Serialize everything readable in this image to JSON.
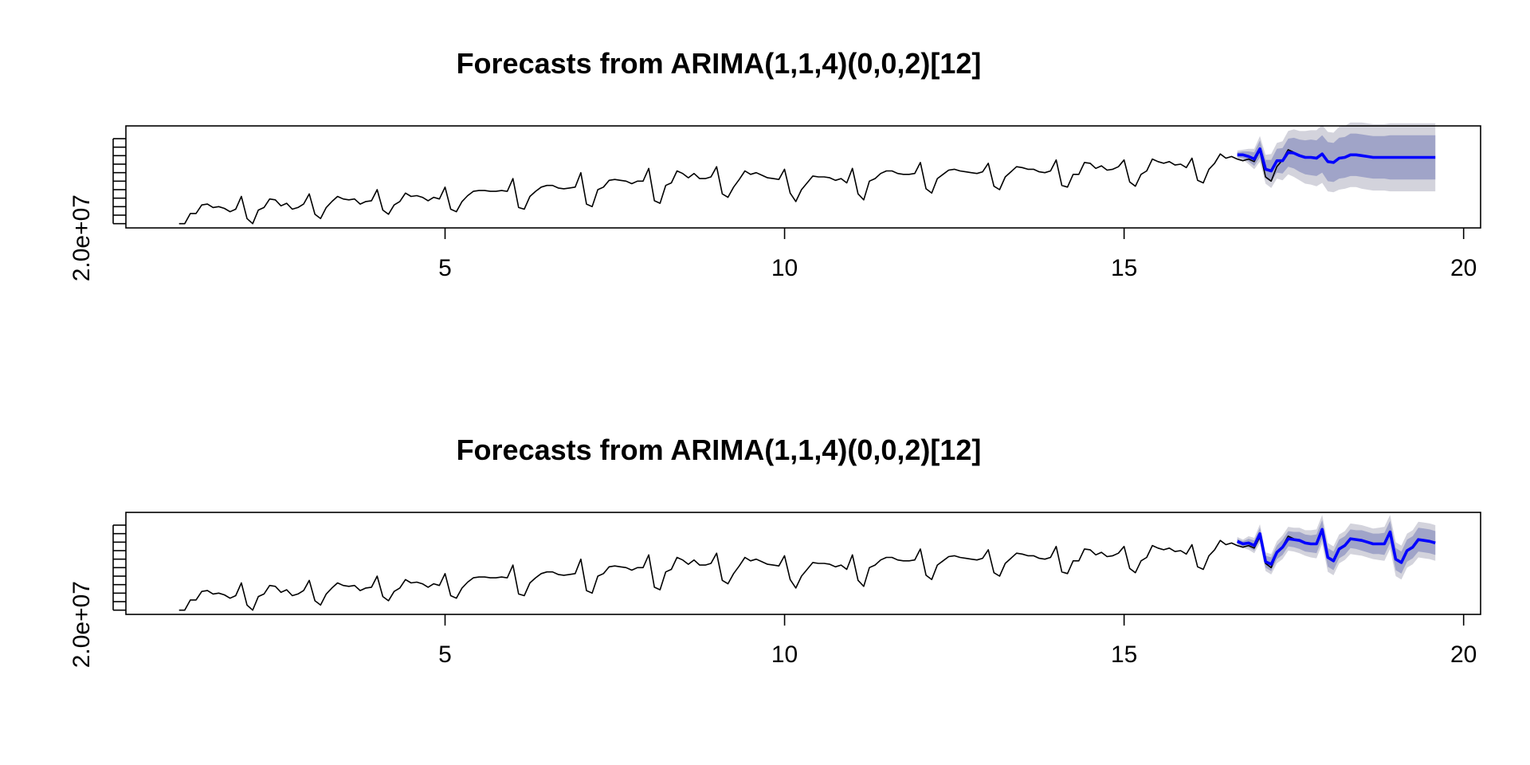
{
  "colors": {
    "history": "#000000",
    "forecast": "#0000ff",
    "band80": "#a0a4c8",
    "band95": "#d3d3dc",
    "axis": "#000000"
  },
  "chart_data": [
    {
      "type": "line",
      "title": "Forecasts from ARIMA(1,1,4)(0,0,2)[12]",
      "xlabel": "",
      "ylabel": "",
      "x_ticks": [
        5,
        10,
        15,
        20
      ],
      "x_tick_labels": [
        "5",
        "10",
        "15",
        "20"
      ],
      "y_tick_labels": [
        "2.0e+07"
      ],
      "xlim": [
        0.3,
        20.25
      ],
      "ylim": [
        19500000,
        31500000
      ],
      "y_minor_ticks": [
        20000000,
        21000000,
        22000000,
        23000000,
        24000000,
        25000000,
        26000000,
        27000000,
        28000000,
        29000000,
        30000000
      ],
      "grid": false,
      "legend": "none",
      "history": {
        "start": 1.0833,
        "step": 0.08333,
        "values": [
          20000000,
          20000000,
          21200000,
          21200000,
          22200000,
          22300000,
          21900000,
          22000000,
          21800000,
          21400000,
          21700000,
          23200000,
          20600000,
          20000000,
          21600000,
          21900000,
          22900000,
          22800000,
          22100000,
          22400000,
          21700000,
          21900000,
          22300000,
          23500000,
          21100000,
          20600000,
          21900000,
          22600000,
          23200000,
          22900000,
          22800000,
          22900000,
          22300000,
          22600000,
          22700000,
          24000000,
          21600000,
          21100000,
          22200000,
          22600000,
          23600000,
          23200000,
          23300000,
          23100000,
          22700000,
          23100000,
          22900000,
          24300000,
          21700000,
          21400000,
          22600000,
          23300000,
          23800000,
          23900000,
          23900000,
          23800000,
          23800000,
          23900000,
          23800000,
          25300000,
          21900000,
          21700000,
          23200000,
          23800000,
          24300000,
          24500000,
          24500000,
          24200000,
          24100000,
          24200000,
          24300000,
          26000000,
          22300000,
          22000000,
          24000000,
          24300000,
          25100000,
          25200000,
          25100000,
          25000000,
          24700000,
          25000000,
          25000000,
          26500000,
          22700000,
          22400000,
          24500000,
          24800000,
          26200000,
          25900000,
          25400000,
          25900000,
          25300000,
          25300000,
          25500000,
          26700000,
          23500000,
          23100000,
          24300000,
          25200000,
          26200000,
          25800000,
          26000000,
          25700000,
          25400000,
          25300000,
          25200000,
          26400000,
          23600000,
          22600000,
          24000000,
          24800000,
          25600000,
          25500000,
          25500000,
          25400000,
          25100000,
          25300000,
          24800000,
          26500000,
          23500000,
          22800000,
          25000000,
          25300000,
          25900000,
          26200000,
          26200000,
          25900000,
          25800000,
          25800000,
          25900000,
          27200000,
          24100000,
          23600000,
          25300000,
          25800000,
          26300000,
          26400000,
          26200000,
          26100000,
          26000000,
          25900000,
          26100000,
          27100000,
          24400000,
          24000000,
          25500000,
          26100000,
          26700000,
          26600000,
          26400000,
          26400000,
          26100000,
          26000000,
          26200000,
          27500000,
          24500000,
          24300000,
          25800000,
          25800000,
          27200000,
          27100000,
          26500000,
          26800000,
          26300000,
          26400000,
          26700000,
          27500000,
          24900000,
          24400000,
          25800000,
          26200000,
          27600000,
          27300000,
          27100000,
          27300000,
          26900000,
          27000000,
          26600000,
          27700000,
          25100000,
          24800000,
          26400000,
          27100000,
          28200000,
          27700000,
          27900000,
          27600000,
          27400000,
          27600000,
          27300000,
          28600000,
          25500000,
          25000000,
          26700000,
          27500000,
          28700000,
          28400000
        ]
      },
      "forecast": {
        "start": 16.667,
        "step": 0.08333,
        "mean": [
          28100000,
          28100000,
          27900000,
          27600000,
          28800000,
          26400000,
          26200000,
          27400000,
          27400000,
          28400000,
          28300000,
          28000000,
          27800000,
          27800000,
          27700000,
          28200000,
          27300000,
          27200000,
          27700000,
          27800000,
          28100000,
          28100000,
          28000000,
          27900000,
          27800000,
          27800000,
          27800000,
          27800000,
          27800000,
          27800000,
          27800000,
          27800000,
          27800000,
          27800000,
          27800000,
          27800000
        ],
        "lo80": [
          27800000,
          27700000,
          27300000,
          26800000,
          27800000,
          25300000,
          24900000,
          26000000,
          25900000,
          26700000,
          26500000,
          26100000,
          25800000,
          25700000,
          25600000,
          26000000,
          25000000,
          24900000,
          25300000,
          25400000,
          25600000,
          25600000,
          25500000,
          25400000,
          25300000,
          25300000,
          25300000,
          25200000,
          25200000,
          25200000,
          25200000,
          25200000,
          25200000,
          25200000,
          25200000,
          25200000
        ],
        "hi80": [
          28400000,
          28500000,
          28500000,
          28400000,
          29800000,
          27500000,
          27500000,
          28800000,
          28900000,
          30000000,
          30100000,
          29900000,
          29800000,
          29900000,
          29800000,
          30400000,
          29600000,
          29500000,
          30100000,
          30200000,
          30600000,
          30600000,
          30500000,
          30400000,
          30300000,
          30300000,
          30300000,
          30400000,
          30400000,
          30400000,
          30400000,
          30400000,
          30400000,
          30400000,
          30400000,
          30400000
        ],
        "lo95": [
          27600000,
          27500000,
          27000000,
          26400000,
          27300000,
          24700000,
          24200000,
          25300000,
          25100000,
          25800000,
          25500000,
          25100000,
          24700000,
          24600000,
          24400000,
          24800000,
          23800000,
          23700000,
          24000000,
          24100000,
          24300000,
          24300000,
          24100000,
          24000000,
          23900000,
          23900000,
          23900000,
          23800000,
          23800000,
          23800000,
          23800000,
          23800000,
          23800000,
          23800000,
          23800000,
          23800000
        ],
        "hi95": [
          28600000,
          28700000,
          28800000,
          28800000,
          30300000,
          28100000,
          28200000,
          29500000,
          29700000,
          30900000,
          31100000,
          30900000,
          30900000,
          31000000,
          31000000,
          31600000,
          30800000,
          30700000,
          31400000,
          31500000,
          31900000,
          31900000,
          31900000,
          31800000,
          31700000,
          31700000,
          31700000,
          31800000,
          31800000,
          31800000,
          31800000,
          31800000,
          31800000,
          31800000,
          31800000,
          31800000
        ]
      }
    },
    {
      "type": "line",
      "title": "Forecasts from ARIMA(1,1,4)(0,0,2)[12]",
      "xlabel": "",
      "ylabel": "",
      "x_ticks": [
        5,
        10,
        15,
        20
      ],
      "x_tick_labels": [
        "5",
        "10",
        "15",
        "20"
      ],
      "y_tick_labels": [
        "2.0e+07"
      ],
      "xlim": [
        0.3,
        20.25
      ],
      "ylim": [
        19500000,
        31500000
      ],
      "y_minor_ticks": [
        20000000,
        21000000,
        22000000,
        23000000,
        24000000,
        25000000,
        26000000,
        27000000,
        28000000,
        29000000,
        30000000
      ],
      "grid": false,
      "legend": "none",
      "history": {
        "start": 1.0833,
        "step": 0.08333,
        "values": [
          20000000,
          20000000,
          21200000,
          21200000,
          22200000,
          22300000,
          21900000,
          22000000,
          21800000,
          21400000,
          21700000,
          23200000,
          20600000,
          20000000,
          21600000,
          21900000,
          22900000,
          22800000,
          22100000,
          22400000,
          21700000,
          21900000,
          22300000,
          23500000,
          21100000,
          20600000,
          21900000,
          22600000,
          23200000,
          22900000,
          22800000,
          22900000,
          22300000,
          22600000,
          22700000,
          24000000,
          21600000,
          21100000,
          22200000,
          22600000,
          23600000,
          23200000,
          23300000,
          23100000,
          22700000,
          23100000,
          22900000,
          24300000,
          21700000,
          21400000,
          22600000,
          23300000,
          23800000,
          23900000,
          23900000,
          23800000,
          23800000,
          23900000,
          23800000,
          25300000,
          21900000,
          21700000,
          23200000,
          23800000,
          24300000,
          24500000,
          24500000,
          24200000,
          24100000,
          24200000,
          24300000,
          26000000,
          22300000,
          22000000,
          24000000,
          24300000,
          25100000,
          25200000,
          25100000,
          25000000,
          24700000,
          25000000,
          25000000,
          26500000,
          22700000,
          22400000,
          24500000,
          24800000,
          26200000,
          25900000,
          25400000,
          25900000,
          25300000,
          25300000,
          25500000,
          26700000,
          23500000,
          23100000,
          24300000,
          25200000,
          26200000,
          25800000,
          26000000,
          25700000,
          25400000,
          25300000,
          25200000,
          26400000,
          23600000,
          22600000,
          24000000,
          24800000,
          25600000,
          25500000,
          25500000,
          25400000,
          25100000,
          25300000,
          24800000,
          26500000,
          23500000,
          22800000,
          25000000,
          25300000,
          25900000,
          26200000,
          26200000,
          25900000,
          25800000,
          25800000,
          25900000,
          27200000,
          24100000,
          23600000,
          25300000,
          25800000,
          26300000,
          26400000,
          26200000,
          26100000,
          26000000,
          25900000,
          26100000,
          27100000,
          24400000,
          24000000,
          25500000,
          26100000,
          26700000,
          26600000,
          26400000,
          26400000,
          26100000,
          26000000,
          26200000,
          27500000,
          24500000,
          24300000,
          25800000,
          25800000,
          27200000,
          27100000,
          26500000,
          26800000,
          26300000,
          26400000,
          26700000,
          27500000,
          24900000,
          24400000,
          25800000,
          26200000,
          27600000,
          27300000,
          27100000,
          27300000,
          26900000,
          27000000,
          26600000,
          27700000,
          25100000,
          24800000,
          26400000,
          27100000,
          28200000,
          27700000,
          27900000,
          27600000,
          27400000,
          27600000,
          27300000,
          28600000,
          25500000,
          25000000,
          26700000,
          27500000,
          28700000,
          28400000
        ]
      },
      "forecast": {
        "start": 16.667,
        "step": 0.08333,
        "mean": [
          28100000,
          27800000,
          27900000,
          27600000,
          29000000,
          25700000,
          25400000,
          26800000,
          27400000,
          28400000,
          28300000,
          28200000,
          27900000,
          27800000,
          27800000,
          29500000,
          26200000,
          25800000,
          27200000,
          27600000,
          28400000,
          28300000,
          28200000,
          28000000,
          27800000,
          27800000,
          27800000,
          29200000,
          26000000,
          25600000,
          27000000,
          27400000,
          28300000,
          28200000,
          28100000,
          27900000
        ],
        "lo80": [
          27800000,
          27500000,
          27400000,
          27000000,
          28300000,
          25000000,
          24600000,
          26000000,
          26500000,
          27500000,
          27400000,
          27200000,
          26900000,
          26800000,
          26700000,
          28400000,
          25100000,
          24700000,
          26100000,
          26500000,
          27300000,
          27200000,
          27000000,
          26800000,
          26600000,
          26600000,
          26500000,
          27900000,
          24700000,
          24300000,
          25700000,
          26100000,
          26900000,
          26800000,
          26700000,
          26500000
        ],
        "hi80": [
          28400000,
          28100000,
          28400000,
          28200000,
          29700000,
          26400000,
          26200000,
          27600000,
          28300000,
          29300000,
          29200000,
          29200000,
          28900000,
          28800000,
          28900000,
          30600000,
          27300000,
          26900000,
          28300000,
          28700000,
          29500000,
          29400000,
          29400000,
          29200000,
          29000000,
          29000000,
          29100000,
          30500000,
          27300000,
          26900000,
          28300000,
          28700000,
          29700000,
          29600000,
          29500000,
          29300000
        ],
        "lo95": [
          27600000,
          27300000,
          27100000,
          26700000,
          27900000,
          24600000,
          24200000,
          25500000,
          26000000,
          27000000,
          26900000,
          26700000,
          26400000,
          26200000,
          26100000,
          27800000,
          24500000,
          24100000,
          25500000,
          25900000,
          26600000,
          26500000,
          26400000,
          26200000,
          26000000,
          25900000,
          25800000,
          27200000,
          24000000,
          23600000,
          25000000,
          25400000,
          26200000,
          26100000,
          26000000,
          25800000
        ],
        "hi95": [
          28600000,
          28300000,
          28700000,
          28500000,
          30100000,
          26800000,
          26600000,
          28100000,
          28800000,
          29800000,
          29700000,
          29700000,
          29400000,
          29400000,
          29500000,
          31200000,
          27900000,
          27500000,
          28900000,
          29300000,
          30200000,
          30100000,
          30000000,
          29800000,
          29600000,
          29700000,
          29800000,
          31200000,
          28000000,
          27600000,
          29000000,
          29400000,
          30400000,
          30300000,
          30200000,
          30000000
        ]
      }
    }
  ]
}
